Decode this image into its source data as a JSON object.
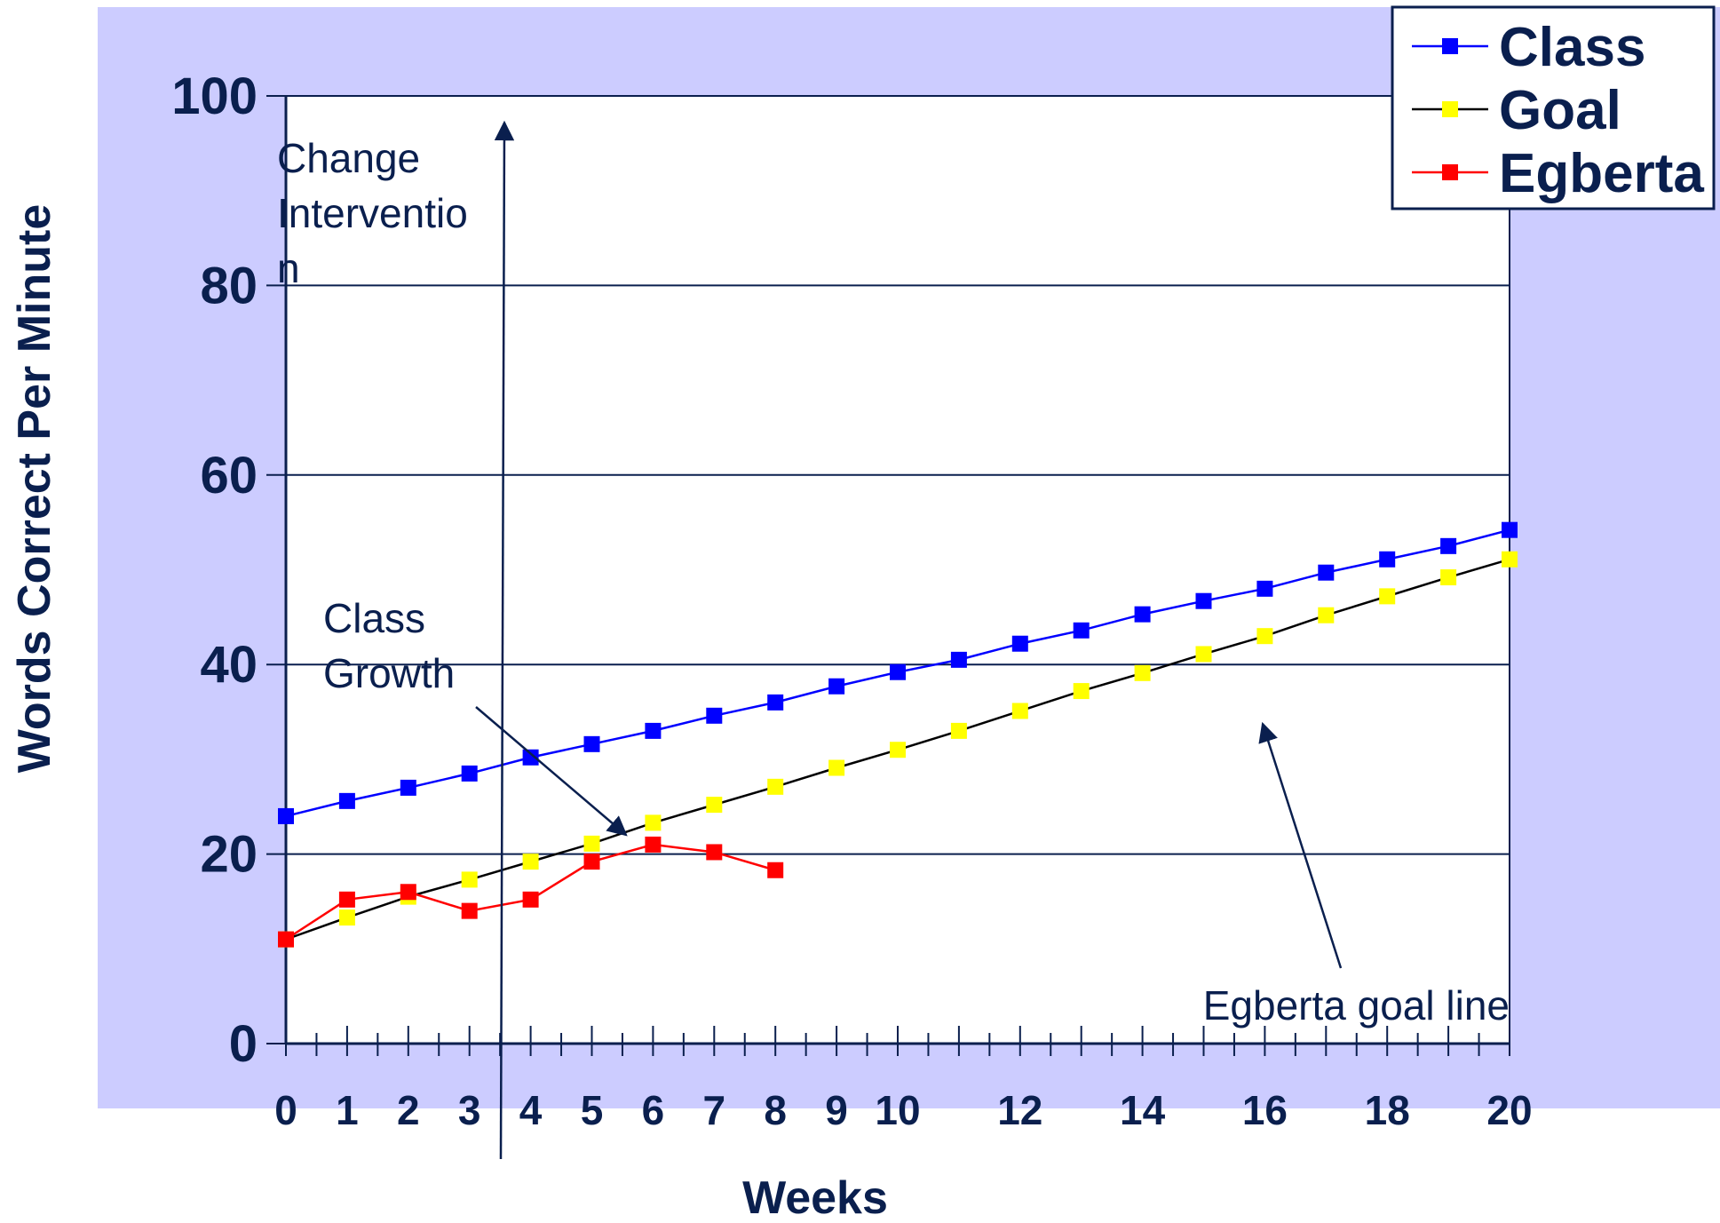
{
  "colors": {
    "plot_background": "#ccccff",
    "plot_area": "#ffffff",
    "text": "#0a1f4e",
    "class_line": "#0000ff",
    "goal_line": "#000000",
    "goal_marker": "#ffff00",
    "egberta_line": "#ff0000"
  },
  "chart_data": {
    "type": "line",
    "xlabel": "Weeks",
    "ylabel": "Words Correct Per Minute",
    "ylim": [
      0,
      100
    ],
    "xlim": [
      0,
      20
    ],
    "y_ticks": [
      0,
      20,
      40,
      60,
      80,
      100
    ],
    "x_tick_labels": [
      "0",
      "1",
      "2",
      "3",
      "4",
      "5",
      "6",
      "7",
      "8",
      "9",
      "10",
      "12",
      "14",
      "16",
      "18",
      "20"
    ],
    "grid": "horizontal",
    "legend_position": "top-right",
    "series": [
      {
        "name": "Class",
        "marker": "square",
        "x": [
          0,
          1,
          2,
          3,
          4,
          5,
          6,
          7,
          8,
          9,
          10,
          11,
          12,
          13,
          14,
          15,
          16,
          17,
          18,
          19,
          20
        ],
        "values": [
          24,
          25.6,
          27,
          28.5,
          30.2,
          31.6,
          33,
          34.6,
          36,
          37.7,
          39.2,
          40.5,
          42.2,
          43.6,
          45.3,
          46.7,
          48,
          49.7,
          51.1,
          52.5,
          54.2
        ]
      },
      {
        "name": "Goal",
        "marker": "square",
        "x": [
          0,
          1,
          2,
          3,
          4,
          5,
          6,
          7,
          8,
          9,
          10,
          11,
          12,
          13,
          14,
          15,
          16,
          17,
          18,
          19,
          20
        ],
        "values": [
          11,
          13.3,
          15.5,
          17.3,
          19.2,
          21.1,
          23.3,
          25.2,
          27.1,
          29.1,
          31,
          33,
          35.1,
          37.2,
          39.1,
          41.1,
          43,
          45.2,
          47.2,
          49.2,
          51.1
        ]
      },
      {
        "name": "Egberta",
        "marker": "square",
        "x": [
          0,
          1,
          2,
          3,
          4,
          5,
          6,
          7,
          8
        ],
        "values": [
          11,
          15.2,
          16,
          14,
          15.2,
          19.2,
          21,
          20.2,
          18.3
        ]
      }
    ],
    "annotations": [
      {
        "id": "change",
        "lines": [
          "Change",
          "Interventio",
          "n"
        ]
      },
      {
        "id": "class_growth",
        "lines": [
          "Class",
          "Growth"
        ]
      },
      {
        "id": "goal_line",
        "lines": [
          "Egberta goal line"
        ]
      }
    ]
  }
}
